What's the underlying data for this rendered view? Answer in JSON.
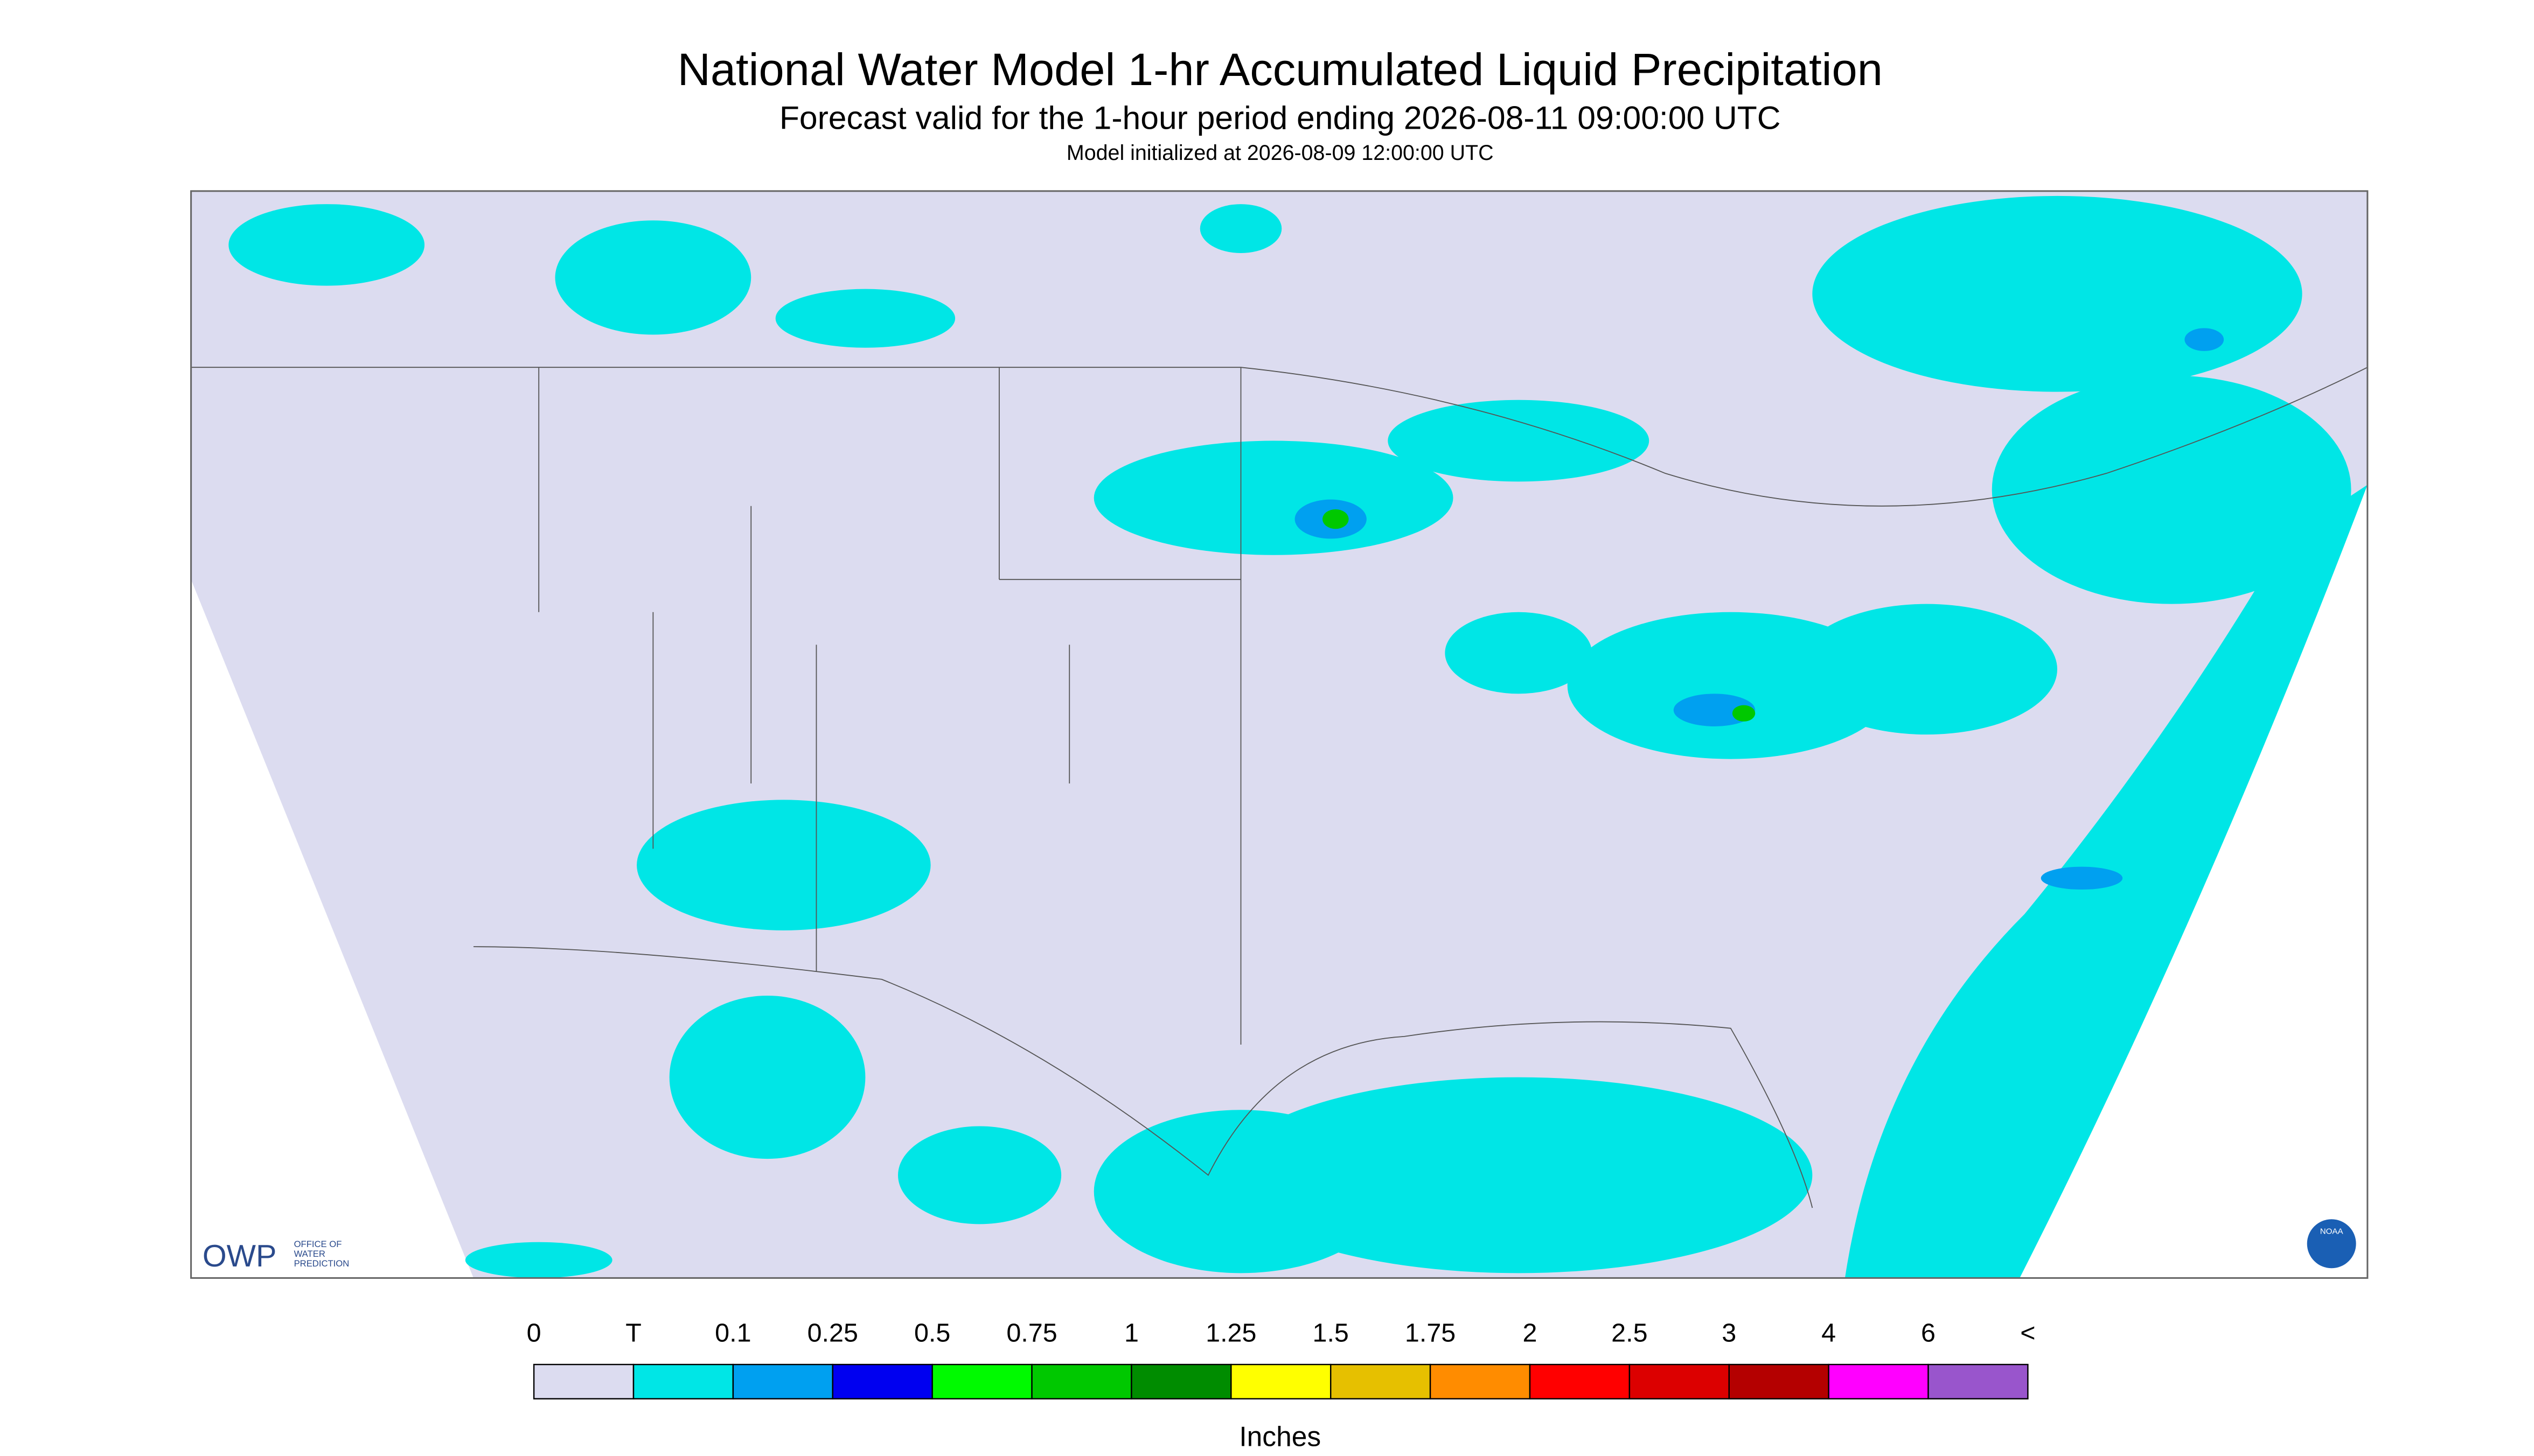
{
  "header": {
    "title": "National Water Model 1-hr Accumulated Liquid Precipitation",
    "subtitle": "Forecast valid for the 1-hour period ending 2026-08-11 09:00:00 UTC",
    "init": "Model initialized at 2026-08-09 12:00:00 UTC"
  },
  "logos": {
    "owp": "OWP",
    "owp_name": [
      "OFFICE OF",
      "WATER",
      "PREDICTION"
    ],
    "noaa": "NOAA"
  },
  "legend": {
    "labels": [
      "0",
      "T",
      "0.1",
      "0.25",
      "0.5",
      "0.75",
      "1",
      "1.25",
      "1.5",
      "1.75",
      "2",
      "2.5",
      "3",
      "4",
      "6",
      "<"
    ],
    "colors": [
      "#dcdcf0",
      "#00e6e6",
      "#00a0f0",
      "#0000f0",
      "#00fa00",
      "#00c800",
      "#008c00",
      "#ffff00",
      "#e6c000",
      "#ff8c00",
      "#ff0000",
      "#dc0000",
      "#b40000",
      "#ff00ff",
      "#9955cc"
    ],
    "units": "Inches"
  }
}
